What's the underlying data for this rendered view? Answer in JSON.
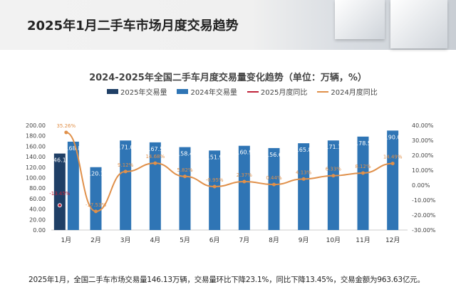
{
  "header": {
    "title": "2025年1月二手车市场月度交易趋势"
  },
  "chart_data": {
    "type": "bar",
    "title": "2024-2025年全国二手车月度交易量变化趋势（单位：万辆，%）",
    "categories": [
      "1月",
      "2月",
      "3月",
      "4月",
      "5月",
      "6月",
      "7月",
      "8月",
      "9月",
      "10月",
      "11月",
      "12月"
    ],
    "series": [
      {
        "name": "2025年交易量",
        "type": "bar",
        "axis": "left",
        "values": [
          146.13,
          null,
          null,
          null,
          null,
          null,
          null,
          null,
          null,
          null,
          null,
          null
        ],
        "labels": [
          "146.13"
        ],
        "color": "#1f3f66"
      },
      {
        "name": "2024年交易量",
        "type": "bar",
        "axis": "left",
        "values": [
          168.8,
          120.1,
          171.0,
          167.5,
          158.4,
          151.9,
          160.9,
          156.6,
          165.8,
          171.1,
          178.5,
          190.0
        ],
        "labels": [
          "168.8",
          "120.1",
          "171.0",
          "167.5",
          "158.4",
          "151.9",
          "160.9",
          "156.6",
          "165.8",
          "171.1",
          "178.5",
          "190.0"
        ],
        "color": "#2f75b5"
      },
      {
        "name": "2025月度同比",
        "type": "line",
        "axis": "right",
        "values": [
          -13.45,
          null,
          null,
          null,
          null,
          null,
          null,
          null,
          null,
          null,
          null,
          null
        ],
        "labels": [
          "-13.45%"
        ],
        "color": "#c0233a"
      },
      {
        "name": "2024月度同比",
        "type": "line",
        "axis": "right",
        "values": [
          35.26,
          -17.53,
          9.12,
          14.68,
          5.82,
          -0.95,
          2.37,
          0.44,
          4.13,
          6.33,
          8.12,
          14.49
        ],
        "labels": [
          "35.26%",
          "-17.53%",
          "9.12%",
          "14.68%",
          "5.82%",
          "-0.95%",
          "2.37%",
          "0.44%",
          "4.13%",
          "6.33%",
          "8.12%",
          "14.49%"
        ],
        "color": "#e0904a"
      }
    ],
    "left_axis": {
      "ylim": [
        0,
        200
      ],
      "ticks": [
        "0.00",
        "20.00",
        "40.00",
        "60.00",
        "80.00",
        "100.00",
        "120.00",
        "140.00",
        "160.00",
        "180.00",
        "200.00"
      ]
    },
    "right_axis": {
      "ylim": [
        -30,
        40
      ],
      "ticks": [
        "-30.00%",
        "-20.00%",
        "-10.00%",
        "0.00%",
        "10.00%",
        "20.00%",
        "30.00%",
        "40.00%"
      ]
    },
    "legend": "top",
    "grid": false
  },
  "footer": {
    "text": "2025年1月，全国二手车市场交易量146.13万辆，交易量环比下降23.1%，同比下降13.45%，交易金额为963.63亿元。"
  }
}
